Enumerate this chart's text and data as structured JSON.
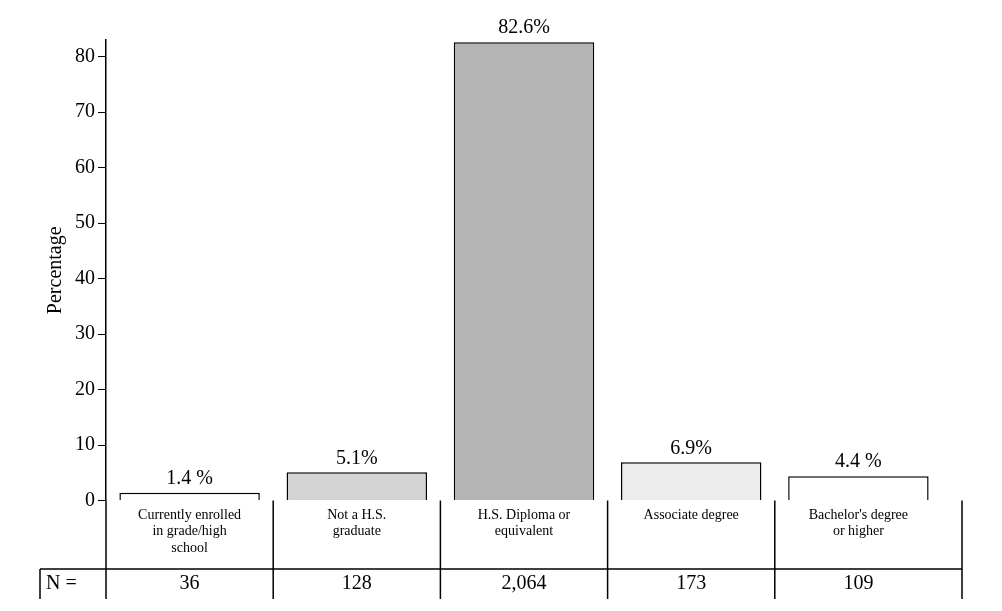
{
  "chart_data": {
    "type": "bar",
    "ylabel": "Percentage",
    "categories": [
      "Currently enrolled in grade/high school",
      "Not a H.S. graduate",
      "H.S. Diploma or equivalent",
      "Associate degree",
      "Bachelor's degree or higher"
    ],
    "values": [
      1.4,
      5.1,
      82.6,
      6.9,
      4.4
    ],
    "colors": [
      "#ffffff",
      "#d4d4d4",
      "#b4b4b4",
      "#ececec",
      "#ffffff"
    ],
    "value_labels": [
      "1.4 %",
      "5.1%",
      "82.6%",
      "6.9%",
      "4.4 %"
    ],
    "ylim": [
      0,
      83
    ],
    "yticks": [
      0,
      10,
      20,
      30,
      40,
      50,
      60,
      70,
      80
    ],
    "grid": false,
    "legend": false,
    "annotations": [
      "N =",
      "36",
      "128",
      "2,064",
      "173",
      "109"
    ]
  }
}
